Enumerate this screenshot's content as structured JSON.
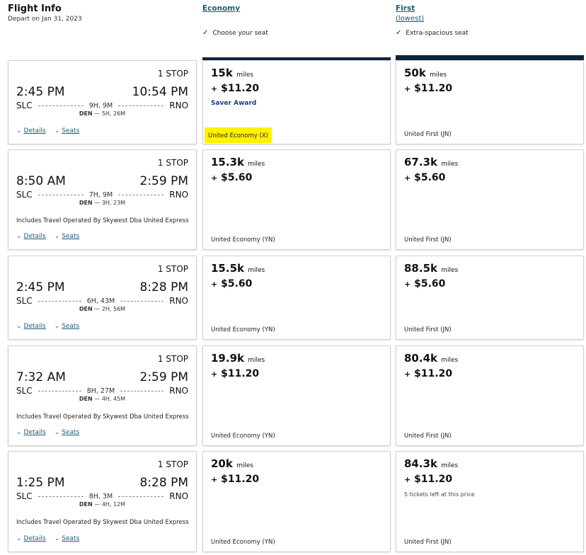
{
  "header": {
    "title": "Flight Info",
    "subtitle": "Depart on Jan 31, 2023"
  },
  "columns": [
    {
      "label": "Economy",
      "sub": "",
      "feature": "Choose your seat"
    },
    {
      "label": "First",
      "sub": "(lowest)",
      "feature": "Extra-spacious seat"
    }
  ],
  "accent_color": "#0c2340",
  "highlight_color": "#fff200",
  "links": {
    "details": "Details",
    "seats": "Seats"
  },
  "flights": [
    {
      "stops": "1 STOP",
      "depart": "2:45 PM",
      "arrive": "10:54 PM",
      "from": "SLC",
      "to": "RNO",
      "duration": "9H, 9M",
      "via": "DEN",
      "layover": "5H, 26M",
      "operated": "",
      "economy": {
        "miles": "15k",
        "unit": "miles",
        "price": "$11.20",
        "badge": "Saver Award",
        "cls": "United Economy (X)",
        "highlighted": true
      },
      "first": {
        "miles": "50k",
        "unit": "miles",
        "price": "$11.20",
        "note": "",
        "cls": "United First (JN)"
      }
    },
    {
      "stops": "1 STOP",
      "depart": "8:50 AM",
      "arrive": "2:59 PM",
      "from": "SLC",
      "to": "RNO",
      "duration": "7H, 9M",
      "via": "DEN",
      "layover": "3H, 23M",
      "operated": "Includes Travel Operated By Skywest Dba United Express",
      "economy": {
        "miles": "15.3k",
        "unit": "miles",
        "price": "$5.60",
        "badge": "",
        "cls": "United Economy (YN)"
      },
      "first": {
        "miles": "67.3k",
        "unit": "miles",
        "price": "$5.60",
        "note": "",
        "cls": "United First (JN)"
      }
    },
    {
      "stops": "1 STOP",
      "depart": "2:45 PM",
      "arrive": "8:28 PM",
      "from": "SLC",
      "to": "RNO",
      "duration": "6H, 43M",
      "via": "DEN",
      "layover": "2H, 56M",
      "operated": "",
      "economy": {
        "miles": "15.5k",
        "unit": "miles",
        "price": "$5.60",
        "badge": "",
        "cls": "United Economy (YN)"
      },
      "first": {
        "miles": "88.5k",
        "unit": "miles",
        "price": "$5.60",
        "note": "",
        "cls": "United First (JN)"
      }
    },
    {
      "stops": "1 STOP",
      "depart": "7:32 AM",
      "arrive": "2:59 PM",
      "from": "SLC",
      "to": "RNO",
      "duration": "8H, 27M",
      "via": "DEN",
      "layover": "4H, 45M",
      "operated": "Includes Travel Operated By Skywest Dba United Express",
      "economy": {
        "miles": "19.9k",
        "unit": "miles",
        "price": "$11.20",
        "badge": "",
        "cls": "United Economy (YN)"
      },
      "first": {
        "miles": "80.4k",
        "unit": "miles",
        "price": "$11.20",
        "note": "",
        "cls": "United First (JN)"
      }
    },
    {
      "stops": "1 STOP",
      "depart": "1:25 PM",
      "arrive": "8:28 PM",
      "from": "SLC",
      "to": "RNO",
      "duration": "8H, 3M",
      "via": "DEN",
      "layover": "4H, 12M",
      "operated": "Includes Travel Operated By Skywest Dba United Express",
      "economy": {
        "miles": "20k",
        "unit": "miles",
        "price": "$11.20",
        "badge": "",
        "cls": "United Economy (YN)"
      },
      "first": {
        "miles": "84.3k",
        "unit": "miles",
        "price": "$11.20",
        "note": "5 tickets left at this price",
        "cls": "United First (JN)"
      }
    }
  ]
}
